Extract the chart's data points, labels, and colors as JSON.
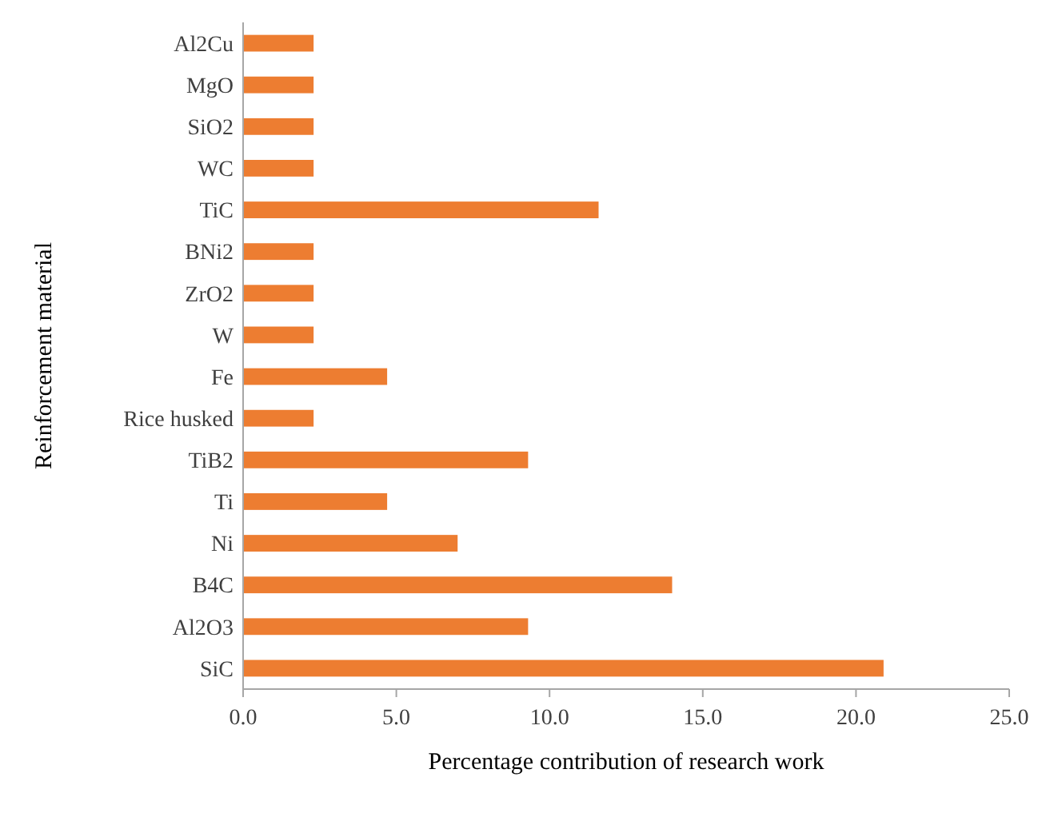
{
  "chart_data": {
    "type": "bar",
    "orientation": "horizontal",
    "xlabel": "Percentage contribution of research work",
    "ylabel": "Reinforcement material",
    "categories": [
      "Al2Cu",
      "MgO",
      "SiO2",
      "WC",
      "TiC",
      "BNi2",
      "ZrO2",
      "W",
      "Fe",
      "Rice husked",
      "TiB2",
      "Ti",
      "Ni",
      "B4C",
      "Al2O3",
      "SiC"
    ],
    "values": [
      2.3,
      2.3,
      2.3,
      2.3,
      11.6,
      2.3,
      2.3,
      2.3,
      4.7,
      2.3,
      9.3,
      4.7,
      7.0,
      14.0,
      9.3,
      20.9
    ],
    "color": "#ed7d31",
    "xlim": [
      0,
      25
    ],
    "xticks": [
      {
        "value": 0,
        "label": "0.0"
      },
      {
        "value": 5,
        "label": "5.0"
      },
      {
        "value": 10,
        "label": "10.0"
      },
      {
        "value": 15,
        "label": "15.0"
      },
      {
        "value": 20,
        "label": "20.0"
      },
      {
        "value": 25,
        "label": "25.0"
      }
    ],
    "grid": false
  }
}
